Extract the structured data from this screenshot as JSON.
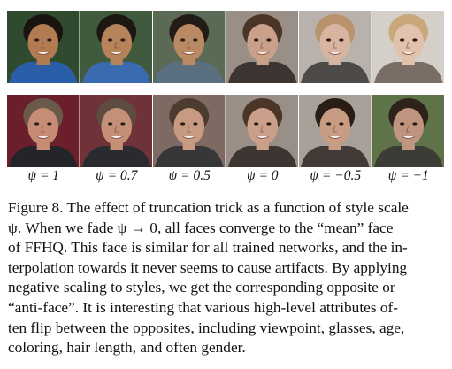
{
  "figure": {
    "psi_labels": [
      "ψ = 1",
      "ψ = 0.7",
      "ψ = 0.5",
      "ψ = 0",
      "ψ = −0.5",
      "ψ = −1"
    ],
    "row1_faces": [
      {
        "skin": "#b27b52",
        "hair": "#1a1410",
        "bg": "#2f4a2e",
        "shirt": "#2b5ea8"
      },
      {
        "skin": "#b7835a",
        "hair": "#1d1712",
        "bg": "#3f5a3c",
        "shirt": "#3a6bb0"
      },
      {
        "skin": "#b98a63",
        "hair": "#231b15",
        "bg": "#5b6a55",
        "shirt": "#5a6f7f"
      },
      {
        "skin": "#caa08a",
        "hair": "#4a3527",
        "bg": "#9a8f86",
        "shirt": "#3c3532"
      },
      {
        "skin": "#d8b5a0",
        "hair": "#b8936c",
        "bg": "#b9b1ab",
        "shirt": "#4e4a47"
      },
      {
        "skin": "#e1c2ac",
        "hair": "#caa77a",
        "bg": "#d5cfca",
        "shirt": "#7a6d65"
      }
    ],
    "row2_faces": [
      {
        "skin": "#c68d74",
        "hair": "#6b5a4c",
        "bg": "#6a1f2b",
        "shirt": "#23252a"
      },
      {
        "skin": "#c49178",
        "hair": "#5d4c3f",
        "bg": "#6e3238",
        "shirt": "#2a2b31"
      },
      {
        "skin": "#c79a82",
        "hair": "#4c3c30",
        "bg": "#7e6a63",
        "shirt": "#37373a"
      },
      {
        "skin": "#caa08a",
        "hair": "#4a3527",
        "bg": "#9a8f86",
        "shirt": "#3c3532"
      },
      {
        "skin": "#c89c83",
        "hair": "#2a1d16",
        "bg": "#a7a199",
        "shirt": "#413a36"
      },
      {
        "skin": "#c09580",
        "hair": "#2e231b",
        "bg": "#5e7348",
        "shirt": "#3c3c37"
      }
    ]
  },
  "caption": {
    "lines": [
      "Figure 8. The effect of truncation trick as a function of style scale",
      "ψ. When we fade ψ → 0, all faces converge to the “mean” face",
      "of FFHQ. This face is similar for all trained networks, and the in-",
      "terpolation towards it never seems to cause artifacts. By applying",
      "negative scaling to styles, we get the corresponding opposite or",
      "“anti-face”. It is interesting that various high-level attributes of-",
      "ten flip between the opposites, including viewpoint, glasses, age,",
      "coloring, hair length, and often gender."
    ]
  }
}
